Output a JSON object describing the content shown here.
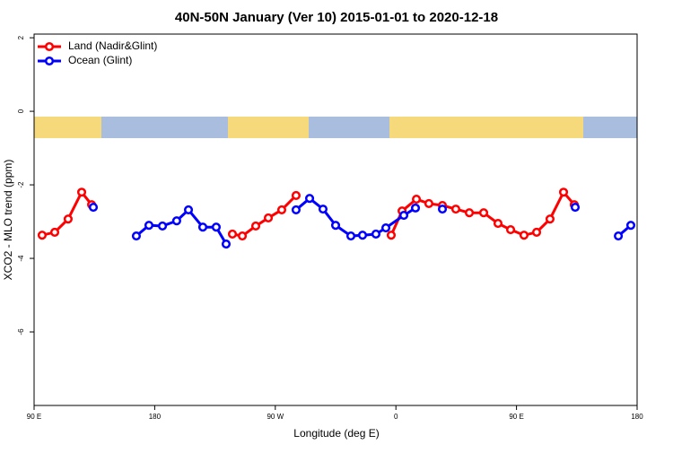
{
  "chart_data": {
    "type": "line",
    "title": "40N-50N January (Ver 10)   2015-01-01 to 2020-12-18",
    "xlabel": "Longitude (deg E)",
    "ylabel": "XCO2 - MLO trend (ppm)",
    "xlim": [
      90,
      540
    ],
    "ylim": [
      -8.0,
      2.1
    ],
    "xticks": [
      {
        "value": 90,
        "label": "90 E"
      },
      180,
      {
        "value": 270,
        "label": "90 W"
      },
      {
        "value": 360,
        "label": "0"
      },
      {
        "value": 450,
        "label": "90 E"
      },
      {
        "value": 540,
        "label": "180"
      }
    ],
    "yticks": [
      -6,
      -4,
      -2,
      0,
      2
    ],
    "legend": "top-left",
    "series": [
      {
        "name": "Land (Nadir&Glint)",
        "color": "#ff0000",
        "x": [
          96,
          105.4,
          115.4,
          125.5,
          132.9,
          null,
          238,
          245.4,
          255.4,
          264.8,
          274.8,
          285.5,
          null,
          356.5,
          364.6,
          375.3,
          384.6,
          394.7,
          404.7,
          414.8,
          425.5,
          436.2,
          445.6,
          455.6,
          465,
          475,
          485.1,
          493.1
        ],
        "values": [
          -3.37,
          -3.29,
          -2.93,
          -2.2,
          -2.54,
          null,
          -3.34,
          -3.39,
          -3.12,
          -2.9,
          -2.68,
          -2.29,
          null,
          -3.37,
          -2.71,
          -2.39,
          -2.51,
          -2.56,
          -2.66,
          -2.76,
          -2.76,
          -3.05,
          -3.22,
          -3.37,
          -3.29,
          -2.93,
          -2.2,
          -2.54
        ]
      },
      {
        "name": "Ocean (Glint)",
        "color": "#0000ff",
        "x": [
          134.2,
          null,
          166.3,
          175.7,
          185.8,
          196.4,
          205.2,
          215.9,
          225.9,
          233.3,
          null,
          285.5,
          295.6,
          305.6,
          315,
          326.4,
          335.1,
          345.1,
          352.5,
          365.9,
          374.6,
          null,
          394.7,
          null,
          493.8,
          null,
          526,
          535.3
        ],
        "values": [
          -2.61,
          null,
          -3.39,
          -3.1,
          -3.12,
          -2.98,
          -2.68,
          -3.15,
          -3.15,
          -3.61,
          null,
          -2.68,
          -2.37,
          -2.66,
          -3.1,
          -3.39,
          -3.37,
          -3.34,
          -3.17,
          -2.83,
          -2.63,
          null,
          -2.66,
          null,
          -2.61,
          null,
          -3.39,
          -3.1
        ]
      }
    ]
  }
}
